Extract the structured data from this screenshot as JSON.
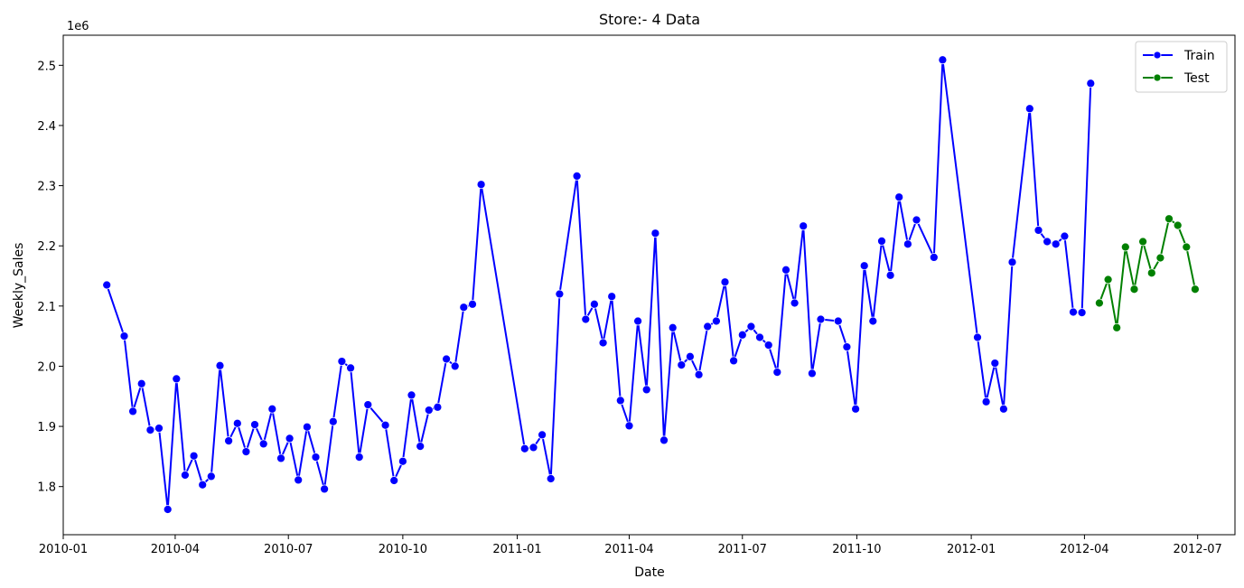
{
  "chart_data": {
    "type": "line",
    "title": "Store:- 4 Data",
    "xlabel": "Date",
    "ylabel": "Weekly_Sales",
    "y_offset_label": "1e6",
    "xlim": [
      "2010-01-01",
      "2012-07-31"
    ],
    "ylim": [
      1.72,
      2.55
    ],
    "x_ticks": [
      "2010-01",
      "2010-04",
      "2010-07",
      "2010-10",
      "2011-01",
      "2011-04",
      "2011-07",
      "2011-10",
      "2012-01",
      "2012-04",
      "2012-07"
    ],
    "y_ticks": [
      "1.8",
      "1.9",
      "2.0",
      "2.1",
      "2.2",
      "2.3",
      "2.4",
      "2.5"
    ],
    "grid": false,
    "legend_position": "top-right",
    "series": [
      {
        "name": "Train",
        "color": "#0000ff",
        "points": [
          [
            "2010-02-05",
            2.135
          ],
          [
            "2010-02-19",
            2.05
          ],
          [
            "2010-02-26",
            1.925
          ],
          [
            "2010-03-05",
            1.971
          ],
          [
            "2010-03-12",
            1.894
          ],
          [
            "2010-03-19",
            1.897
          ],
          [
            "2010-03-26",
            1.762
          ],
          [
            "2010-04-02",
            1.979
          ],
          [
            "2010-04-09",
            1.819
          ],
          [
            "2010-04-16",
            1.851
          ],
          [
            "2010-04-23",
            1.803
          ],
          [
            "2010-04-30",
            1.817
          ],
          [
            "2010-05-07",
            2.001
          ],
          [
            "2010-05-14",
            1.876
          ],
          [
            "2010-05-21",
            1.905
          ],
          [
            "2010-05-28",
            1.858
          ],
          [
            "2010-06-04",
            1.903
          ],
          [
            "2010-06-11",
            1.871
          ],
          [
            "2010-06-18",
            1.929
          ],
          [
            "2010-06-25",
            1.847
          ],
          [
            "2010-07-02",
            1.88
          ],
          [
            "2010-07-09",
            1.811
          ],
          [
            "2010-07-16",
            1.899
          ],
          [
            "2010-07-23",
            1.849
          ],
          [
            "2010-07-30",
            1.796
          ],
          [
            "2010-08-06",
            1.908
          ],
          [
            "2010-08-13",
            2.008
          ],
          [
            "2010-08-20",
            1.997
          ],
          [
            "2010-08-27",
            1.849
          ],
          [
            "2010-09-03",
            1.936
          ],
          [
            "2010-09-17",
            1.902
          ],
          [
            "2010-09-24",
            1.81
          ],
          [
            "2010-10-01",
            1.842
          ],
          [
            "2010-10-08",
            1.952
          ],
          [
            "2010-10-15",
            1.867
          ],
          [
            "2010-10-22",
            1.927
          ],
          [
            "2010-10-29",
            1.932
          ],
          [
            "2010-11-05",
            2.012
          ],
          [
            "2010-11-12",
            2.0
          ],
          [
            "2010-11-19",
            2.098
          ],
          [
            "2010-11-26",
            2.103
          ],
          [
            "2010-12-03",
            2.302
          ],
          [
            "2011-01-07",
            1.863
          ],
          [
            "2011-01-14",
            1.865
          ],
          [
            "2011-01-21",
            1.886
          ],
          [
            "2011-01-28",
            1.813
          ],
          [
            "2011-02-04",
            2.12
          ],
          [
            "2011-02-18",
            2.316
          ],
          [
            "2011-02-25",
            2.078
          ],
          [
            "2011-03-04",
            2.103
          ],
          [
            "2011-03-11",
            2.039
          ],
          [
            "2011-03-18",
            2.116
          ],
          [
            "2011-03-25",
            1.943
          ],
          [
            "2011-04-01",
            1.901
          ],
          [
            "2011-04-08",
            2.075
          ],
          [
            "2011-04-15",
            1.961
          ],
          [
            "2011-04-22",
            2.221
          ],
          [
            "2011-04-29",
            1.877
          ],
          [
            "2011-05-06",
            2.064
          ],
          [
            "2011-05-13",
            2.002
          ],
          [
            "2011-05-20",
            2.016
          ],
          [
            "2011-05-27",
            1.986
          ],
          [
            "2011-06-03",
            2.066
          ],
          [
            "2011-06-10",
            2.075
          ],
          [
            "2011-06-17",
            2.14
          ],
          [
            "2011-06-24",
            2.009
          ],
          [
            "2011-07-01",
            2.052
          ],
          [
            "2011-07-08",
            2.066
          ],
          [
            "2011-07-15",
            2.048
          ],
          [
            "2011-07-22",
            2.035
          ],
          [
            "2011-07-29",
            1.99
          ],
          [
            "2011-08-05",
            2.16
          ],
          [
            "2011-08-12",
            2.105
          ],
          [
            "2011-08-19",
            2.233
          ],
          [
            "2011-08-26",
            1.988
          ],
          [
            "2011-09-02",
            2.078
          ],
          [
            "2011-09-16",
            2.075
          ],
          [
            "2011-09-23",
            2.032
          ],
          [
            "2011-09-30",
            1.929
          ],
          [
            "2011-10-07",
            2.167
          ],
          [
            "2011-10-14",
            2.075
          ],
          [
            "2011-10-21",
            2.208
          ],
          [
            "2011-10-28",
            2.151
          ],
          [
            "2011-11-04",
            2.281
          ],
          [
            "2011-11-11",
            2.203
          ],
          [
            "2011-11-18",
            2.243
          ],
          [
            "2011-12-02",
            2.181
          ],
          [
            "2011-12-09",
            2.509
          ],
          [
            "2012-01-06",
            2.048
          ],
          [
            "2012-01-13",
            1.941
          ],
          [
            "2012-01-20",
            2.005
          ],
          [
            "2012-01-27",
            1.929
          ],
          [
            "2012-02-03",
            2.173
          ],
          [
            "2012-02-17",
            2.428
          ],
          [
            "2012-02-24",
            2.226
          ],
          [
            "2012-03-02",
            2.207
          ],
          [
            "2012-03-09",
            2.203
          ],
          [
            "2012-03-16",
            2.216
          ],
          [
            "2012-03-23",
            2.09
          ],
          [
            "2012-03-30",
            2.089
          ],
          [
            "2012-04-06",
            2.47
          ]
        ]
      },
      {
        "name": "Test",
        "color": "#008000",
        "points": [
          [
            "2012-04-13",
            2.105
          ],
          [
            "2012-04-20",
            2.144
          ],
          [
            "2012-04-27",
            2.064
          ],
          [
            "2012-05-04",
            2.198
          ],
          [
            "2012-05-11",
            2.128
          ],
          [
            "2012-05-18",
            2.207
          ],
          [
            "2012-05-25",
            2.155
          ],
          [
            "2012-06-01",
            2.18
          ],
          [
            "2012-06-08",
            2.245
          ],
          [
            "2012-06-15",
            2.234
          ],
          [
            "2012-06-22",
            2.198
          ],
          [
            "2012-06-29",
            2.128
          ]
        ]
      }
    ]
  }
}
